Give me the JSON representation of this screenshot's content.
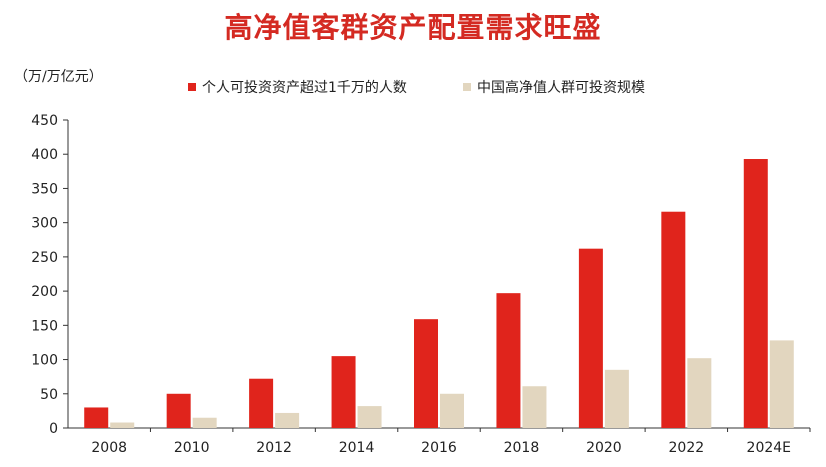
{
  "title": "高净值客群资产配置需求旺盛",
  "unit_label": "（万/万亿元）",
  "chart_data": {
    "type": "bar",
    "categories": [
      "2008",
      "2010",
      "2012",
      "2014",
      "2016",
      "2018",
      "2020",
      "2022",
      "2024E"
    ],
    "series": [
      {
        "name": "个人可投资资产超过1千万的人数",
        "color": "#e0241c",
        "values": [
          30,
          50,
          72,
          105,
          159,
          197,
          262,
          316,
          393
        ]
      },
      {
        "name": "中国高净值人群可投资规模",
        "color": "#e2d6bf",
        "values": [
          8,
          15,
          22,
          32,
          50,
          61,
          85,
          102,
          128
        ]
      }
    ],
    "ylim": [
      0,
      450
    ],
    "yticks": [
      0,
      50,
      100,
      150,
      200,
      250,
      300,
      350,
      400,
      450
    ],
    "grid": false,
    "legend_position": "top"
  }
}
